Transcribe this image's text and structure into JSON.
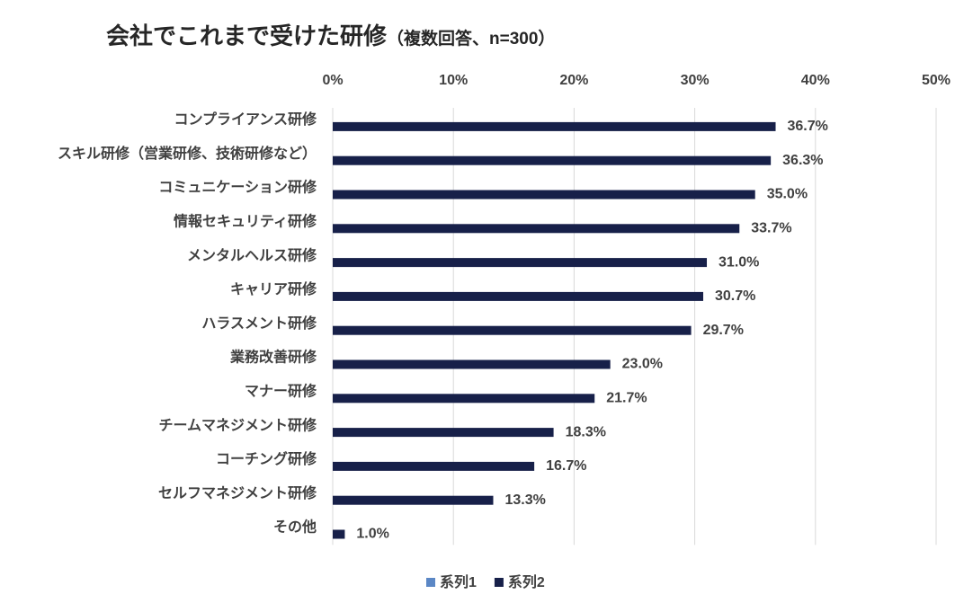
{
  "chart_data": {
    "type": "bar",
    "orientation": "horizontal",
    "title": "会社でこれまで受けた研修",
    "subtitle": "（複数回答、n=300）",
    "categories": [
      "コンプライアンス研修",
      "スキル研修（営業研修、技術研修など）",
      "コミュニケーション研修",
      "情報セキュリティ研修",
      "メンタルヘルス研修",
      "キャリア研修",
      "ハラスメント研修",
      "業務改善研修",
      "マナー研修",
      "チームマネジメント研修",
      "コーチング研修",
      "セルフマネジメント研修",
      "その他"
    ],
    "series": [
      {
        "name": "系列1",
        "color": "#5b87c5",
        "values": [
          null,
          null,
          null,
          null,
          null,
          null,
          null,
          null,
          null,
          null,
          null,
          null,
          null
        ]
      },
      {
        "name": "系列2",
        "color": "#172049",
        "values": [
          36.7,
          36.3,
          35.0,
          33.7,
          31.0,
          30.7,
          29.7,
          23.0,
          21.7,
          18.3,
          16.7,
          13.3,
          1.0
        ],
        "value_labels": [
          "36.7%",
          "36.3%",
          "35.0%",
          "33.7%",
          "31.0%",
          "30.7%",
          "29.7%",
          "23.0%",
          "21.7%",
          "18.3%",
          "16.7%",
          "13.3%",
          "1.0%"
        ]
      }
    ],
    "xlim": [
      0,
      50
    ],
    "xticks": [
      {
        "value": 0,
        "label": "0%"
      },
      {
        "value": 10,
        "label": "10%"
      },
      {
        "value": 20,
        "label": "20%"
      },
      {
        "value": 30,
        "label": "30%"
      },
      {
        "value": 40,
        "label": "40%"
      },
      {
        "value": 50,
        "label": "50%"
      }
    ],
    "grid": true,
    "legend": "bottom"
  }
}
